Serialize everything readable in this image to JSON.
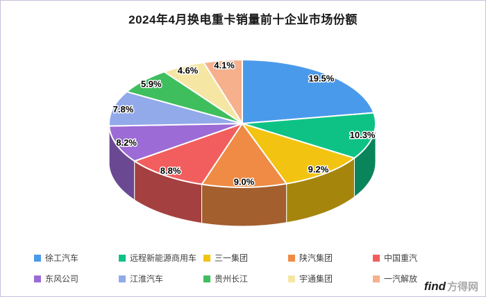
{
  "page": {
    "title": "2024年4月换电重卡销量前十企业市场份额",
    "watermark": {
      "latin": "find",
      "cn": "方得网"
    }
  },
  "chart_data": {
    "type": "pie",
    "style": "3d-pie",
    "title": "2024年4月换电重卡销量前十企业市场份额",
    "unit": "%",
    "legend_position": "bottom",
    "label_format": "value-percent",
    "series": [
      {
        "name": "徐工汽车",
        "value": 19.5,
        "color": "#4A9AEC"
      },
      {
        "name": "远程新能源商用车",
        "value": 10.3,
        "color": "#0EC286"
      },
      {
        "name": "三一集团",
        "value": 9.2,
        "color": "#F2C411"
      },
      {
        "name": "陕汽集团",
        "value": 9.0,
        "color": "#EF8B44"
      },
      {
        "name": "中国重汽",
        "value": 8.8,
        "color": "#F25E5E"
      },
      {
        "name": "东风公司",
        "value": 8.2,
        "color": "#9C6BD6"
      },
      {
        "name": "江淮汽车",
        "value": 7.8,
        "color": "#92A9EA"
      },
      {
        "name": "贵州长江",
        "value": 5.9,
        "color": "#3FBE5E"
      },
      {
        "name": "宇通集团",
        "value": 4.6,
        "color": "#F6E6A3"
      },
      {
        "name": "一汽解放",
        "value": 4.1,
        "color": "#F6B08C"
      }
    ]
  }
}
